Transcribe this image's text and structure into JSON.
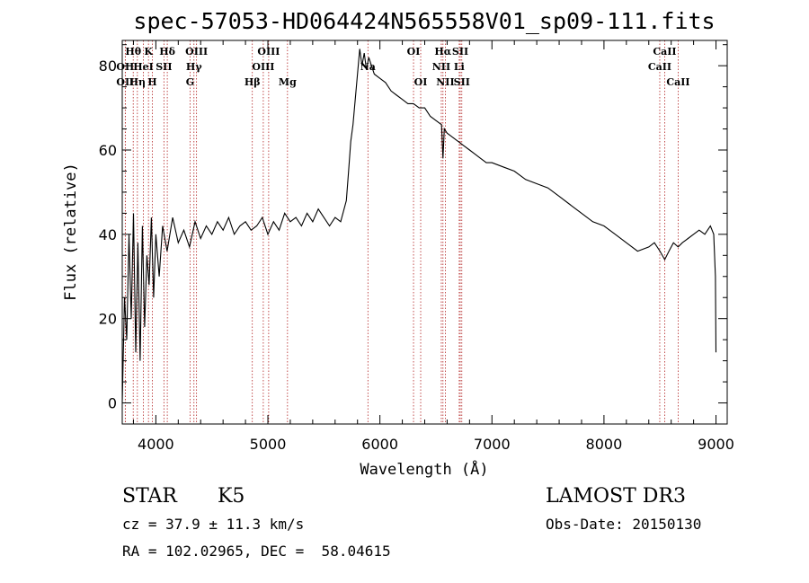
{
  "chart_data": {
    "type": "line",
    "title": "spec-57053-HD064424N565558V01_sp09-111.fits",
    "xlabel": "Wavelength (Å)",
    "ylabel": "Flux (relative)",
    "xlim": [
      3700,
      9100
    ],
    "ylim": [
      -5,
      86
    ],
    "xticks": [
      4000,
      5000,
      6000,
      7000,
      8000,
      9000
    ],
    "yticks": [
      0,
      20,
      40,
      60,
      80
    ],
    "series": [
      {
        "name": "flux",
        "x": [
          3700,
          3720,
          3740,
          3760,
          3780,
          3800,
          3820,
          3840,
          3860,
          3880,
          3900,
          3920,
          3940,
          3960,
          3980,
          4000,
          4030,
          4060,
          4100,
          4150,
          4200,
          4250,
          4300,
          4350,
          4400,
          4450,
          4500,
          4550,
          4600,
          4650,
          4700,
          4750,
          4800,
          4850,
          4900,
          4950,
          5000,
          5050,
          5100,
          5150,
          5200,
          5250,
          5300,
          5350,
          5400,
          5450,
          5500,
          5550,
          5600,
          5650,
          5700,
          5720,
          5740,
          5760,
          5780,
          5800,
          5820,
          5840,
          5860,
          5880,
          5900,
          5950,
          6000,
          6050,
          6100,
          6150,
          6200,
          6250,
          6300,
          6350,
          6400,
          6450,
          6500,
          6550,
          6563,
          6575,
          6600,
          6650,
          6700,
          6750,
          6800,
          6850,
          6900,
          6950,
          7000,
          7100,
          7200,
          7300,
          7400,
          7500,
          7600,
          7700,
          7800,
          7900,
          8000,
          8100,
          8200,
          8300,
          8400,
          8450,
          8500,
          8542,
          8580,
          8620,
          8662,
          8700,
          8750,
          8800,
          8850,
          8900,
          8950,
          8980,
          8995,
          9000
        ],
        "y": [
          0,
          25,
          15,
          40,
          20,
          45,
          12,
          38,
          10,
          42,
          18,
          35,
          28,
          44,
          25,
          40,
          30,
          42,
          36,
          44,
          38,
          41,
          37,
          43,
          39,
          42,
          40,
          43,
          41,
          44,
          40,
          42,
          43,
          41,
          42,
          44,
          40,
          43,
          41,
          45,
          43,
          44,
          42,
          45,
          43,
          46,
          44,
          42,
          44,
          43,
          48,
          55,
          62,
          66,
          72,
          78,
          84,
          80,
          83,
          79,
          82,
          78,
          77,
          76,
          74,
          73,
          72,
          71,
          71,
          70,
          70,
          68,
          67,
          66,
          58,
          65,
          64,
          63,
          62,
          61,
          60,
          59,
          58,
          57,
          57,
          56,
          55,
          53,
          52,
          51,
          49,
          47,
          45,
          43,
          42,
          40,
          38,
          36,
          37,
          38,
          36,
          34,
          36,
          38,
          37,
          38,
          39,
          40,
          41,
          40,
          42,
          40,
          30,
          12
        ]
      }
    ],
    "line_labels": [
      {
        "label": "Hθ",
        "x": 3798,
        "row": 1
      },
      {
        "label": "OII",
        "x": 3727,
        "row": 2
      },
      {
        "label": "OII",
        "x": 3727,
        "row": 3
      },
      {
        "label": "Hη",
        "x": 3835,
        "row": 3
      },
      {
        "label": "HeI",
        "x": 3889,
        "row": 2
      },
      {
        "label": "K",
        "x": 3934,
        "row": 1
      },
      {
        "label": "H",
        "x": 3968,
        "row": 3
      },
      {
        "label": "SII",
        "x": 4072,
        "row": 2
      },
      {
        "label": "Hδ",
        "x": 4102,
        "row": 1
      },
      {
        "label": "OIII",
        "x": 4363,
        "row": 1
      },
      {
        "label": "Hγ",
        "x": 4340,
        "row": 2
      },
      {
        "label": "G",
        "x": 4305,
        "row": 3
      },
      {
        "label": "Hβ",
        "x": 4861,
        "row": 3
      },
      {
        "label": "OIII",
        "x": 5007,
        "row": 1
      },
      {
        "label": "OIII",
        "x": 4959,
        "row": 2
      },
      {
        "label": "Mg",
        "x": 5175,
        "row": 3
      },
      {
        "label": "Na",
        "x": 5893,
        "row": 2
      },
      {
        "label": "OI",
        "x": 6300,
        "row": 1
      },
      {
        "label": "OI",
        "x": 6364,
        "row": 3
      },
      {
        "label": "Hα",
        "x": 6563,
        "row": 1
      },
      {
        "label": "NII",
        "x": 6548,
        "row": 2
      },
      {
        "label": "NII",
        "x": 6584,
        "row": 3
      },
      {
        "label": "SII",
        "x": 6717,
        "row": 1
      },
      {
        "label": "Li",
        "x": 6708,
        "row": 2
      },
      {
        "label": "SII",
        "x": 6731,
        "row": 3
      },
      {
        "label": "CaII",
        "x": 8542,
        "row": 1
      },
      {
        "label": "CaII",
        "x": 8498,
        "row": 2
      },
      {
        "label": "CaII",
        "x": 8662,
        "row": 3
      }
    ],
    "line_color": "#b22222"
  },
  "info": {
    "object_class": "STAR",
    "subclass": "K5",
    "survey": "LAMOST DR3",
    "redshift": "cz = 37.9 ± 11.3 km/s",
    "obs_date": "Obs-Date: 20150130",
    "coords": "RA = 102.02965, DEC =  58.04615"
  }
}
